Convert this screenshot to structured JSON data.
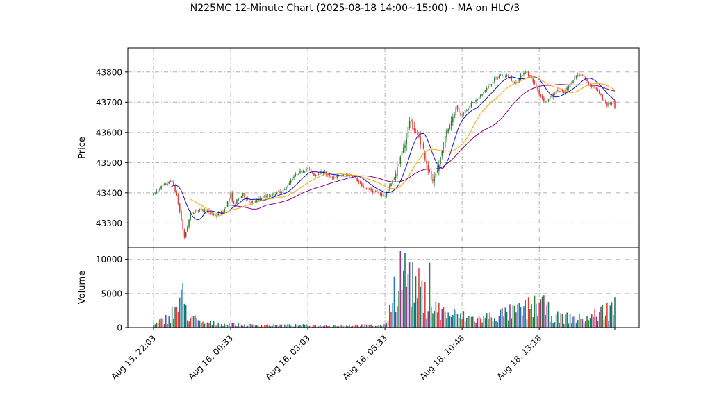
{
  "chart_data": {
    "type": "candlestick",
    "title": "N225MC 12-Minute Chart (2025-08-18 14:00~15:00) - MA on HLC/3",
    "price_panel": {
      "ylabel": "Price",
      "yticks": [
        43300,
        43400,
        43500,
        43600,
        43700,
        43800
      ],
      "ylim": [
        43218,
        43880
      ]
    },
    "volume_panel": {
      "ylabel": "Volume",
      "yticks": [
        0,
        5000,
        10000
      ],
      "ylim": [
        0,
        11700
      ]
    },
    "x_tick_labels": [
      "Aug 15, 22:03",
      "Aug 16, 00:33",
      "Aug 16, 03:03",
      "Aug 16, 05:33",
      "Aug 18, 10:48",
      "Aug 18, 13:18"
    ],
    "bar_count": 300,
    "colors": {
      "up": "#2e7d32",
      "down": "#e53935",
      "ma_fast": "#1010d0",
      "ma_mid": "#ffa500",
      "ma_slow": "#800080"
    },
    "grid": true,
    "price_path": [
      [
        0,
        43395
      ],
      [
        5,
        43420
      ],
      [
        12,
        43440
      ],
      [
        15,
        43390
      ],
      [
        18,
        43310
      ],
      [
        20,
        43250
      ],
      [
        24,
        43330
      ],
      [
        28,
        43345
      ],
      [
        34,
        43340
      ],
      [
        40,
        43325
      ],
      [
        45,
        43335
      ],
      [
        48,
        43370
      ],
      [
        50,
        43395
      ],
      [
        52,
        43360
      ],
      [
        55,
        43380
      ],
      [
        58,
        43395
      ],
      [
        62,
        43370
      ],
      [
        66,
        43370
      ],
      [
        70,
        43385
      ],
      [
        75,
        43390
      ],
      [
        80,
        43400
      ],
      [
        85,
        43410
      ],
      [
        90,
        43450
      ],
      [
        95,
        43470
      ],
      [
        100,
        43480
      ],
      [
        104,
        43460
      ],
      [
        110,
        43470
      ],
      [
        115,
        43450
      ],
      [
        120,
        43455
      ],
      [
        125,
        43460
      ],
      [
        130,
        43455
      ],
      [
        135,
        43420
      ],
      [
        140,
        43410
      ],
      [
        145,
        43400
      ],
      [
        150,
        43390
      ],
      [
        155,
        43440
      ],
      [
        158,
        43480
      ],
      [
        160,
        43520
      ],
      [
        163,
        43560
      ],
      [
        166,
        43640
      ],
      [
        170,
        43600
      ],
      [
        174,
        43560
      ],
      [
        178,
        43480
      ],
      [
        181,
        43430
      ],
      [
        184,
        43470
      ],
      [
        187,
        43540
      ],
      [
        190,
        43600
      ],
      [
        193,
        43640
      ],
      [
        196,
        43680
      ],
      [
        200,
        43660
      ],
      [
        205,
        43690
      ],
      [
        210,
        43710
      ],
      [
        215,
        43740
      ],
      [
        220,
        43770
      ],
      [
        225,
        43790
      ],
      [
        230,
        43785
      ],
      [
        235,
        43760
      ],
      [
        238,
        43790
      ],
      [
        242,
        43800
      ],
      [
        246,
        43770
      ],
      [
        250,
        43730
      ],
      [
        254,
        43700
      ],
      [
        258,
        43720
      ],
      [
        262,
        43740
      ],
      [
        266,
        43730
      ],
      [
        270,
        43760
      ],
      [
        274,
        43790
      ],
      [
        278,
        43790
      ],
      [
        282,
        43760
      ],
      [
        286,
        43750
      ],
      [
        290,
        43720
      ],
      [
        294,
        43690
      ],
      [
        298,
        43700
      ],
      [
        299,
        43680
      ]
    ],
    "volume_profile": [
      [
        0,
        300
      ],
      [
        10,
        1500
      ],
      [
        16,
        3000
      ],
      [
        18,
        5000
      ],
      [
        22,
        2000
      ],
      [
        30,
        700
      ],
      [
        45,
        500
      ],
      [
        60,
        350
      ],
      [
        100,
        300
      ],
      [
        150,
        300
      ],
      [
        158,
        7000
      ],
      [
        162,
        9000
      ],
      [
        170,
        6000
      ],
      [
        180,
        3000
      ],
      [
        190,
        2000
      ],
      [
        210,
        1200
      ],
      [
        240,
        2500
      ],
      [
        250,
        3500
      ],
      [
        260,
        1500
      ],
      [
        280,
        1200
      ],
      [
        299,
        3000
      ]
    ]
  }
}
